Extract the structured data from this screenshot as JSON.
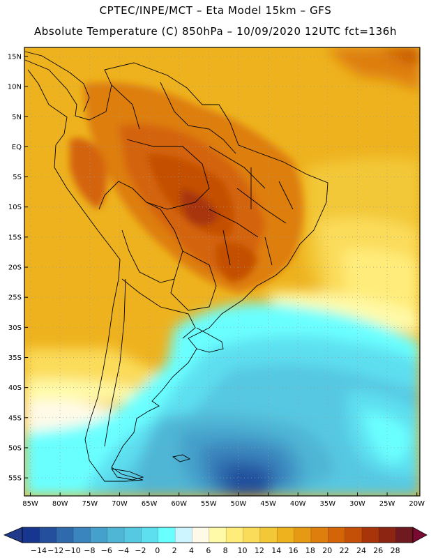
{
  "header": {
    "line1": "CPTEC/INPE/MCT –  Eta Model 15km – GFS",
    "line2": "Absolute Temperature (C) 850hPa – 10/09/2020 12UTC fct=136h"
  },
  "map": {
    "lat_labels": [
      "15N",
      "10N",
      "5N",
      "EQ",
      "5S",
      "10S",
      "15S",
      "20S",
      "25S",
      "30S",
      "35S",
      "40S",
      "45S",
      "50S",
      "55S"
    ],
    "lat_values": [
      15,
      10,
      5,
      0,
      -5,
      -10,
      -15,
      -20,
      -25,
      -30,
      -35,
      -40,
      -45,
      -50,
      -55
    ],
    "lon_labels": [
      "85W",
      "80W",
      "75W",
      "70W",
      "65W",
      "60W",
      "55W",
      "50W",
      "45W",
      "40W",
      "35W",
      "30W",
      "25W",
      "20W"
    ],
    "lon_values": [
      -85,
      -80,
      -75,
      -70,
      -65,
      -60,
      -55,
      -50,
      -45,
      -40,
      -35,
      -30,
      -25,
      -20
    ],
    "extent": {
      "lon_min": -86,
      "lon_max": -19.5,
      "lat_min": -58,
      "lat_max": 16.5
    }
  },
  "colorbar": {
    "labels": [
      "−14",
      "−12",
      "−10",
      "−8",
      "−6",
      "−4",
      "−2",
      "0",
      "2",
      "4",
      "6",
      "8",
      "10",
      "12",
      "14",
      "16",
      "18",
      "20",
      "22",
      "24",
      "26",
      "28"
    ],
    "colors": [
      "#17368f",
      "#234f9c",
      "#2f6aad",
      "#3a85bd",
      "#45a0cb",
      "#4fb6d6",
      "#57c8e2",
      "#5ddff0",
      "#6affff",
      "#cdf5ff",
      "#fffae8",
      "#fffaa8",
      "#ffec7a",
      "#fbdc5a",
      "#f3c838",
      "#eeb21e",
      "#e69a14",
      "#de7e0c",
      "#d46408",
      "#c44f06",
      "#a8350a",
      "#8c2612",
      "#6e1a20"
    ],
    "end_low": "#203a8c",
    "end_high": "#7a0a33"
  },
  "palette": {
    "background": "#ffffff",
    "outline": "#000000",
    "grid": "#9a9a9a"
  }
}
